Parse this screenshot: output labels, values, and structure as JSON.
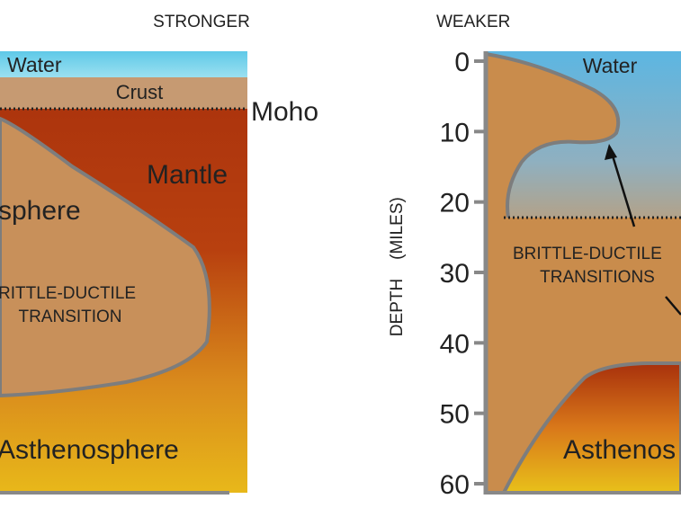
{
  "left_panel": {
    "title": "STRONGER",
    "labels": {
      "water": "Water",
      "crust": "Crust",
      "moho": "Moho",
      "mantle": "Mantle",
      "lithosphere": "sphere",
      "transition_1": "RITTLE-DUCTILE",
      "transition_2": "TRANSITION",
      "asthenosphere": "Asthenosphere"
    }
  },
  "right_panel": {
    "title": "WEAKER",
    "labels": {
      "water": "Water",
      "transition_1": "BRITTLE-DUCTILE",
      "transition_2": "TRANSITIONS",
      "asthenosphere": "Asthenos"
    },
    "axis": {
      "label_main": "DEPTH",
      "label_paren": "(MILES)",
      "ylim": [
        0,
        60
      ],
      "yticks": [
        0,
        10,
        20,
        30,
        40,
        50,
        60
      ]
    }
  }
}
